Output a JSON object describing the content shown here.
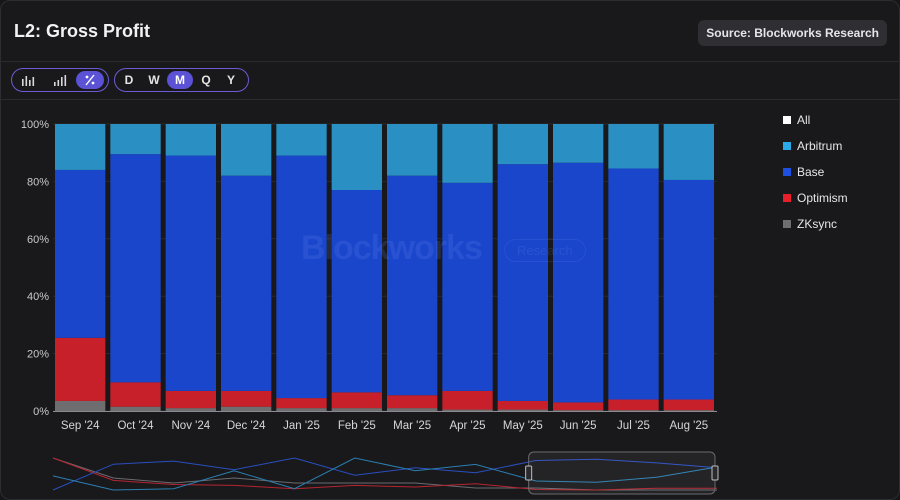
{
  "header": {
    "title": "L2: Gross Profit",
    "source": "Source: Blockworks Research"
  },
  "toolbar": {
    "chart_types": [
      {
        "icon": "bar-chart-icon",
        "active": false
      },
      {
        "icon": "stacked-bar-chart-icon",
        "active": false
      },
      {
        "icon": "percent-icon",
        "active": true
      }
    ],
    "periods": [
      {
        "label": "D",
        "active": false
      },
      {
        "label": "W",
        "active": false
      },
      {
        "label": "M",
        "active": true
      },
      {
        "label": "Q",
        "active": false
      },
      {
        "label": "Y",
        "active": false
      }
    ]
  },
  "watermark": {
    "main": "Blockworks",
    "sub": "Research"
  },
  "legend": [
    {
      "name": "All",
      "color": "#ffffff"
    },
    {
      "name": "Arbitrum",
      "color": "#2aa9e8"
    },
    {
      "name": "Base",
      "color": "#1d4fe0"
    },
    {
      "name": "Optimism",
      "color": "#e81e2a"
    },
    {
      "name": "ZKsync",
      "color": "#6e6e70"
    }
  ],
  "chart_data": {
    "type": "bar",
    "stacked": true,
    "normalized": true,
    "categories": [
      "Sep '24",
      "Oct '24",
      "Nov '24",
      "Dec '24",
      "Jan '25",
      "Feb '25",
      "Mar '25",
      "Apr '25",
      "May '25",
      "Jun '25",
      "Jul '25",
      "Aug '25"
    ],
    "yticks": [
      "0%",
      "20%",
      "40%",
      "60%",
      "80%",
      "100%"
    ],
    "ylim": [
      0,
      100
    ],
    "series": [
      {
        "name": "ZKsync",
        "color": "#6e6e70",
        "values": [
          3.5,
          1.5,
          1.0,
          1.5,
          1.0,
          1.0,
          1.0,
          0.5,
          0.5,
          0.3,
          0.3,
          0.3
        ]
      },
      {
        "name": "Optimism",
        "color": "#c8202a",
        "values": [
          22.0,
          8.5,
          6.0,
          5.5,
          3.5,
          5.5,
          4.5,
          6.5,
          3.0,
          2.7,
          3.7,
          3.7
        ]
      },
      {
        "name": "Base",
        "color": "#1a46cc",
        "values": [
          58.5,
          79.5,
          82.0,
          75.0,
          84.5,
          70.5,
          76.5,
          72.5,
          82.5,
          83.5,
          80.5,
          76.5
        ]
      },
      {
        "name": "Arbitrum",
        "color": "#2a8fc2",
        "values": [
          16.0,
          10.5,
          11.0,
          18.0,
          11.0,
          23.0,
          18.0,
          20.5,
          14.0,
          13.5,
          15.5,
          19.5
        ]
      }
    ]
  }
}
